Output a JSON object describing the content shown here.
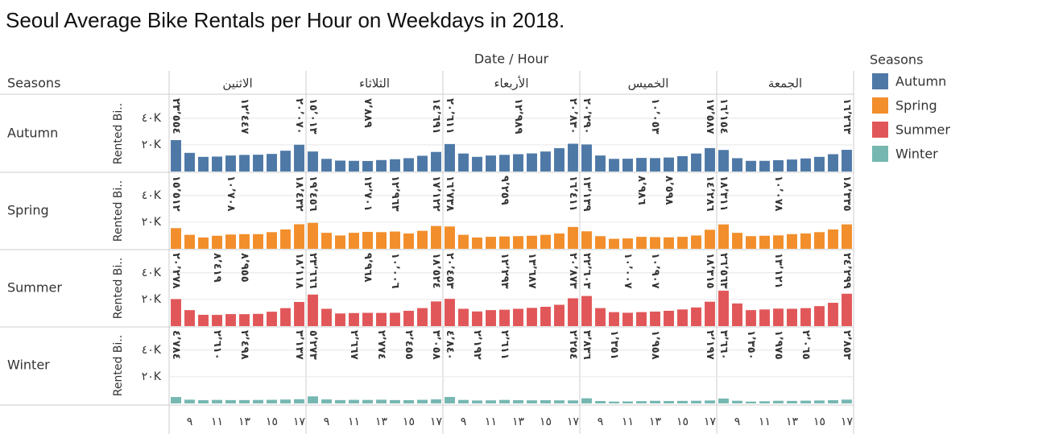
{
  "chart_data": {
    "type": "bar",
    "title": "Seoul Average Bike Rentals per Hour on Weekdays in 2018.",
    "x_label": "Date / Hour",
    "row_header": "Seasons",
    "y_label": "Rented Bi..",
    "legend_title": "Seasons",
    "columns": [
      "الاثنين",
      "الثلاثاء",
      "الأربعاء",
      "الخميس",
      "الجمعة"
    ],
    "categories": [
      null,
      "٩",
      null,
      "١١",
      null,
      "١٣",
      null,
      "١٥",
      null,
      "١٧"
    ],
    "ylim": [
      0,
      58000
    ],
    "yticks": [
      {
        "value": 20000,
        "label": "٢٠K"
      },
      {
        "value": 40000,
        "label": "٤٠K"
      }
    ],
    "grid": true,
    "series": [
      {
        "name": "Autumn",
        "color": "#4e79a7",
        "panels": [
          {
            "values": [
              23554,
              14000,
              11000,
              11200,
              12000,
              12447,
              12600,
              13200,
              15600,
              20070
            ],
            "value_labels": [
              "٢٣٬٥٥٤",
              null,
              null,
              null,
              null,
              "١٢٬٤٤٧",
              null,
              null,
              null,
              "٢٠٬٠٧٠"
            ]
          },
          {
            "values": [
              15013,
              9500,
              8200,
              8000,
              7889,
              8600,
              9200,
              10000,
              11800,
              14691
            ],
            "value_labels": [
              "١٥٬٠١٣",
              null,
              null,
              null,
              "٧٬٨٨٩",
              null,
              null,
              null,
              null,
              "١٤٬٦٩١"
            ]
          },
          {
            "values": [
              20611,
              13500,
              11000,
              12000,
              12500,
              12989,
              13600,
              15000,
              17500,
              20830
            ],
            "value_labels": [
              "٢٠٬٦١١",
              null,
              null,
              null,
              null,
              "١٢٬٩٨٩",
              null,
              null,
              null,
              "٢٠٬٨٣٠"
            ]
          },
          {
            "values": [
              20290,
              12000,
              9500,
              9600,
              10200,
              10053,
              10500,
              11500,
              13500,
              17587
            ],
            "value_labels": [
              "٢٠٬٢٩٠",
              null,
              null,
              null,
              null,
              "١٠٬٠٥٣",
              null,
              null,
              null,
              "١٧٬٥٨٧"
            ]
          },
          {
            "values": [
              16154,
              10000,
              8000,
              8000,
              8500,
              9000,
              9800,
              11000,
              13000,
              16263
            ],
            "value_labels": [
              "١٦٬١٥٤",
              null,
              null,
              null,
              null,
              null,
              null,
              null,
              null,
              "١٦٬٢٦٣"
            ]
          }
        ]
      },
      {
        "name": "Spring",
        "color": "#f28e2b",
        "panels": [
          {
            "values": [
              15512,
              10500,
              8500,
              9800,
              10708,
              11000,
              11000,
              12500,
              14500,
              18432
            ],
            "value_labels": [
              "١٥٬٥١٢",
              null,
              null,
              null,
              "١٠٬٧٠٨",
              null,
              null,
              null,
              null,
              "١٨٬٤٣٢"
            ]
          },
          {
            "values": [
              19456,
              12000,
              10000,
              12000,
              12701,
              12500,
              12963,
              11500,
              13500,
              17122
            ],
            "value_labels": [
              "١٩٬٤٥٦",
              null,
              null,
              null,
              "١٢٬٧٠١",
              null,
              "١٢٬٩٦٣",
              null,
              null,
              "١٧٬١٢٢"
            ]
          },
          {
            "values": [
              16738,
              10500,
              8500,
              9000,
              9259,
              9500,
              9800,
              10500,
              11500,
              16411
            ],
            "value_labels": [
              "١٦٬٧٣٨",
              null,
              null,
              null,
              "٩٬٢٥٩",
              null,
              null,
              null,
              null,
              "١٦٬٤١١"
            ]
          },
          {
            "values": [
              13139,
              9500,
              7500,
              7800,
              8986,
              8800,
              8598,
              9000,
              10000,
              14286
            ],
            "value_labels": [
              "١٣٬١٣٩",
              null,
              null,
              null,
              "٨٬٩٨٦",
              null,
              "٨٬٥٩٨",
              null,
              null,
              "١٤٬٢٨٦"
            ]
          },
          {
            "values": [
              18311,
              12000,
              9500,
              9800,
              10078,
              11000,
              11500,
              12500,
              14500,
              18335
            ],
            "value_labels": [
              "١٨٬٣١١",
              null,
              null,
              null,
              "١٠٬٠٧٨",
              null,
              null,
              null,
              null,
              "١٨٬٣٣٥"
            ]
          }
        ]
      },
      {
        "name": "Summer",
        "color": "#e15759",
        "panels": [
          {
            "values": [
              20278,
              12000,
              8500,
              8419,
              9000,
              8955,
              9200,
              10800,
              13500,
              18118
            ],
            "value_labels": [
              "٢٠٬٢٧٨",
              null,
              null,
              "٨٬٤١٩",
              null,
              "٨٬٩٥٥",
              null,
              null,
              null,
              "١٨٬١١٨"
            ]
          },
          {
            "values": [
              23666,
              13000,
              9500,
              9800,
              9968,
              9900,
              10006,
              11500,
              13500,
              18524
            ],
            "value_labels": [
              "٢٣٬٦٦٦",
              null,
              null,
              null,
              "٩٬٩٦٨",
              null,
              "١٠٬٠٠٦",
              null,
              null,
              "١٨٬٥٢٤"
            ]
          },
          {
            "values": [
              20453,
              13000,
              11000,
              12000,
              12293,
              13000,
              13687,
              14500,
              16000,
              20873
            ],
            "value_labels": [
              "٢٠٬٤٥٣",
              null,
              null,
              null,
              "١٢٬٢٩٣",
              null,
              "١٣٬٦٨٧",
              null,
              null,
              "٢٠٬٨٧٣"
            ]
          },
          {
            "values": [
              22603,
              13500,
              10500,
              10007,
              10500,
              10907,
              11500,
              12500,
              14000,
              18315
            ],
            "value_labels": [
              "٢٢٬٦٠٣",
              null,
              null,
              "١٠٬٠٠٧",
              null,
              "١٠٬٩٠٧",
              null,
              null,
              null,
              "١٨٬٣١٥"
            ]
          },
          {
            "values": [
              26563,
              17000,
              12000,
              12500,
              13121,
              13000,
              13500,
              15000,
              17500,
              24299
            ],
            "value_labels": [
              "٢٦٬٥٦٣",
              null,
              null,
              null,
              "١٣٬١٢١",
              null,
              null,
              null,
              null,
              "٢٤٬٢٩٩"
            ]
          }
        ]
      },
      {
        "name": "Winter",
        "color": "#76b7b2",
        "panels": [
          {
            "values": [
              4784,
              2800,
              2400,
              2610,
              2500,
              2498,
              2600,
              2700,
              2900,
              3137
            ],
            "value_labels": [
              "٤٬٧٨٤",
              null,
              null,
              "٢٬٦١٠",
              null,
              "٢٬٤٩٨",
              null,
              null,
              null,
              "٣٬١٣٧"
            ]
          },
          {
            "values": [
              5273,
              3000,
              2500,
              2667,
              2600,
              2774,
              2500,
              2455,
              2700,
              3058
            ],
            "value_labels": [
              "٥٬٢٧٣",
              null,
              null,
              "٢٬٦٦٧",
              null,
              "٢٬٧٧٤",
              null,
              "٢٬٤٥٥",
              null,
              "٣٬٠٥٨"
            ]
          },
          {
            "values": [
              4840,
              2600,
              2192,
              2300,
              2611,
              2400,
              2300,
              2400,
              2300,
              2254
            ],
            "value_labels": [
              "٤٬٨٤٠",
              null,
              "٢٬١٩٢",
              null,
              "٢٬٦١١",
              null,
              null,
              null,
              null,
              "٢٬٢٥٤"
            ]
          },
          {
            "values": [
              3836,
              1800,
              1351,
              1500,
              1700,
              1958,
              1800,
              1900,
              2000,
              2197
            ],
            "value_labels": [
              "٣٬٨٣٦",
              null,
              "١٬٣٥١",
              null,
              null,
              "١٬٩٥٨",
              null,
              null,
              null,
              "٢٬١٩٧"
            ]
          },
          {
            "values": [
              3660,
              2000,
              1350,
              1600,
              1975,
              1900,
              2065,
              2200,
              2400,
              2853
            ],
            "value_labels": [
              "٣٬٦٦٠",
              null,
              "١٬٣٥٠",
              null,
              "١٬٩٧٥",
              null,
              "٢٬٠٦٥",
              null,
              null,
              "٢٬٨٥٣"
            ]
          }
        ]
      }
    ]
  }
}
